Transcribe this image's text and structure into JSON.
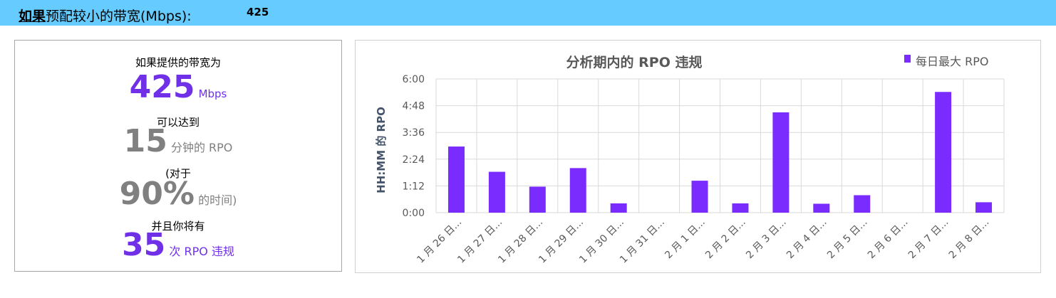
{
  "header": {
    "title_bold": "如果",
    "title_rest": "预配较小的带宽(Mbps):",
    "value": "425"
  },
  "summary": {
    "line1": "如果提供的带宽为",
    "bandwidth": "425",
    "bandwidth_unit": "Mbps",
    "line2": "可以达到",
    "rpo_minutes": "15",
    "rpo_unit": "分钟的 RPO",
    "line3": "(对于",
    "percent": "90%",
    "percent_suffix": "的时间)",
    "line4": "并且你将有",
    "violations": "35",
    "violations_suffix": "次 RPO 违规"
  },
  "colors": {
    "header_bg": "#66ccff",
    "accent_purple": "#7030e8",
    "bar_purple": "#7a2cff",
    "muted_grey": "#808080"
  },
  "chart_data": {
    "type": "bar",
    "title": "分析期内的 RPO 违规",
    "ylabel": "HH:MM 的 RPO",
    "xlabel": "",
    "legend_position": "top-right",
    "grid": true,
    "y_tick_labels": [
      "0:00",
      "1:12",
      "2:24",
      "3:36",
      "4:48",
      "6:00"
    ],
    "ylim_minutes": [
      0,
      360
    ],
    "categories": [
      "1 月 26 日...",
      "1 月 27 日...",
      "1 月 28 日...",
      "1 月 29 日...",
      "1 月 30 日...",
      "1 月 31 日...",
      "2 月 1 日...",
      "2 月 2 日...",
      "2 月 3 日...",
      "2 月 4 日...",
      "2 月 5 日...",
      "2 月 6 日...",
      "2 月 7 日...",
      "2 月 8 日..."
    ],
    "series": [
      {
        "name": "每日最大 RPO",
        "values_minutes": [
          178,
          110,
          70,
          120,
          25,
          0,
          86,
          25,
          270,
          24,
          47,
          0,
          325,
          28
        ]
      }
    ]
  }
}
